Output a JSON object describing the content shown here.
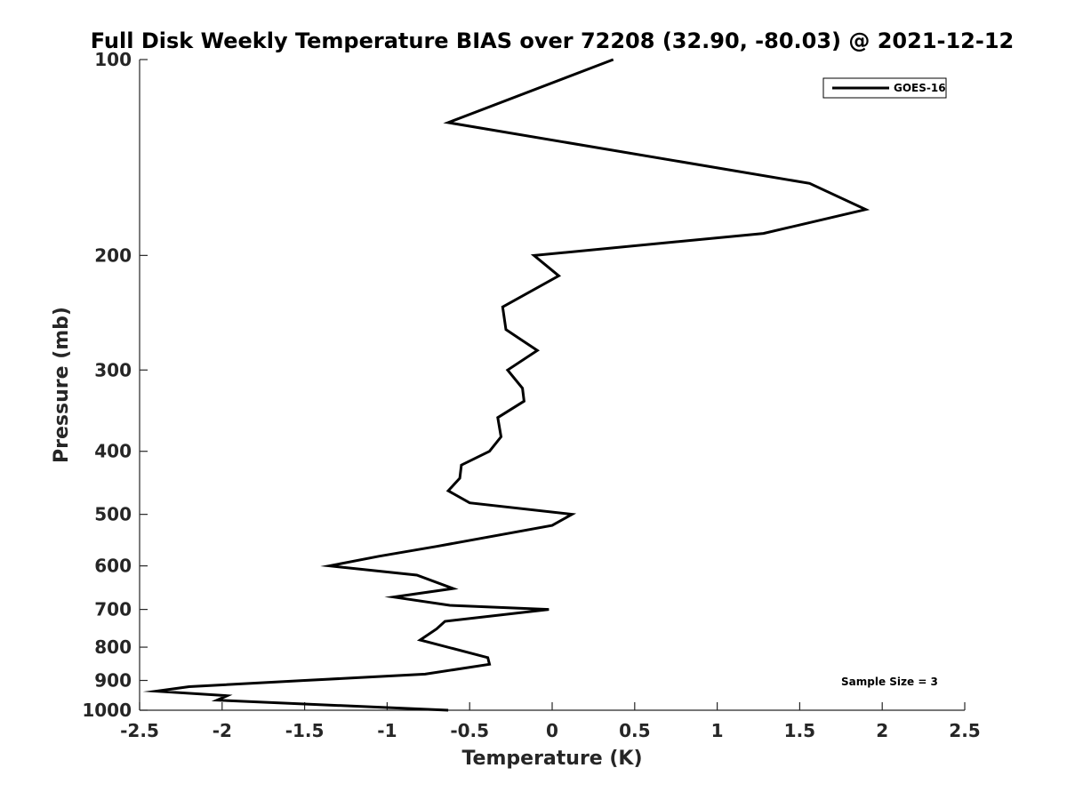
{
  "chart_data": {
    "type": "line",
    "title": "Full Disk Weekly Temperature BIAS over 72208 (32.90, -80.03) @ 2021-12-12",
    "xlabel": "Temperature (K)",
    "ylabel": "Pressure (mb)",
    "xlim": [
      -2.5,
      2.5
    ],
    "ylim": [
      1000,
      100
    ],
    "yscale": "log",
    "y_reversed": true,
    "x_ticks": [
      "-2.5",
      "-2",
      "-1.5",
      "-1",
      "-0.5",
      "0",
      "0.5",
      "1",
      "1.5",
      "2",
      "2.5"
    ],
    "y_ticks": [
      "100",
      "200",
      "300",
      "400",
      "500",
      "600",
      "700",
      "800",
      "900",
      "1000"
    ],
    "grid": false,
    "legend_position": "top-right",
    "annotation": "Sample Size = 3",
    "color": "#000000",
    "series": [
      {
        "name": "GOES-16",
        "x": [
          0.37,
          -0.63,
          1.56,
          1.9,
          1.28,
          -0.11,
          0.04,
          -0.3,
          -0.28,
          -0.09,
          -0.27,
          -0.18,
          -0.17,
          -0.33,
          -0.31,
          -0.38,
          -0.55,
          -0.56,
          -0.63,
          -0.5,
          0.12,
          0.0,
          -0.7,
          -1.05,
          -1.35,
          -0.82,
          -0.6,
          -0.96,
          -0.62,
          -0.02,
          -0.65,
          -0.7,
          -0.8,
          -0.39,
          -0.38,
          -0.77,
          -1.5,
          -2.2,
          -2.4,
          -1.97,
          -2.03,
          -0.63
        ],
        "y": [
          100,
          125,
          155,
          170,
          185,
          200,
          215,
          240,
          260,
          280,
          300,
          320,
          335,
          355,
          380,
          400,
          420,
          440,
          460,
          480,
          500,
          520,
          560,
          580,
          600,
          620,
          650,
          670,
          690,
          700,
          730,
          750,
          780,
          830,
          850,
          880,
          900,
          920,
          935,
          950,
          965,
          1000
        ]
      }
    ]
  }
}
